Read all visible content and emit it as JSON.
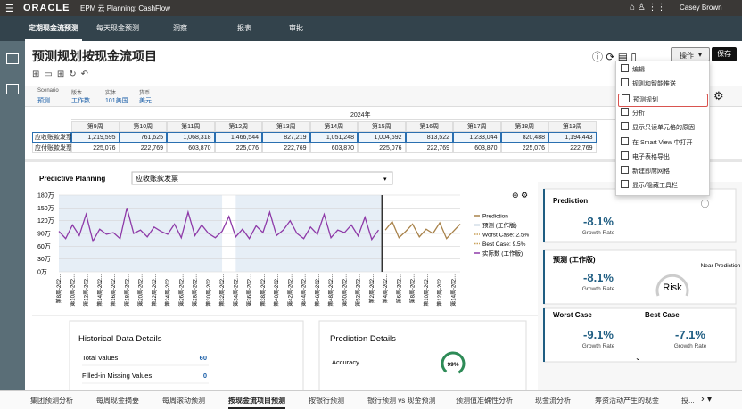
{
  "header": {
    "logo": "ORACLE",
    "app": "EPM 云 Planning: CashFlow",
    "user": "Casey Brown"
  },
  "nav": [
    "定期现金流预测",
    "每天现金预测",
    "洞察",
    "报表",
    "审批"
  ],
  "title": "预测规划按现金流项目",
  "actions": {
    "menu": "操作",
    "save": "保存"
  },
  "menu": [
    "编辑",
    "规则和智能推送",
    "预测规划",
    "分析",
    "显示只读单元格的原因",
    "在 Smart View 中打开",
    "电子表格导出",
    "新建即席网格",
    "显示/隐藏工具栏"
  ],
  "pov": [
    {
      "label": "Scenario",
      "value": "预测"
    },
    {
      "label": "版本",
      "value": "工作数"
    },
    {
      "label": "实体",
      "value": "101美国"
    },
    {
      "label": "货币",
      "value": "美元"
    }
  ],
  "grid": {
    "year": "2024年",
    "columns": [
      "第9周",
      "第10周",
      "第11周",
      "第12周",
      "第13周",
      "第14周",
      "第15周",
      "第16周",
      "第17周",
      "第18周",
      "第19周"
    ],
    "rows": [
      {
        "label": "应收账款发票",
        "cells": [
          "1,219,595",
          "761,625",
          "1,068,318",
          "1,466,544",
          "827,219",
          "1,051,248",
          "1,004,692",
          "813,522",
          "1,233,044",
          "820,488",
          "1,194,443"
        ]
      },
      {
        "label": "应付账款发票",
        "cells": [
          "225,076",
          "222,769",
          "603,870",
          "225,076",
          "222,769",
          "603,870",
          "225,076",
          "222,769",
          "603,870",
          "225,076",
          "222,769"
        ]
      }
    ]
  },
  "panel": {
    "title": "Predictive Planning",
    "member": "应收账款发票"
  },
  "chart_data": {
    "type": "line",
    "categories": [
      "第8周-202...",
      null,
      "第10周-202...",
      null,
      "第12周-202...",
      null,
      "第14周-202...",
      null,
      "第16周-202...",
      null,
      "第18周-202...",
      null,
      "第20周-202...",
      null,
      "第22周-202...",
      null,
      "第24周-202...",
      null,
      "第26周-202...",
      null,
      "第28周-202...",
      null,
      "第30周-202...",
      null,
      "第32周-202...",
      null,
      "第34周-202...",
      null,
      "第36周-202...",
      null,
      "第38周-202...",
      null,
      "第40周-202...",
      null,
      "第42周-202...",
      null,
      "第44周-202...",
      null,
      "第46周-202...",
      null,
      "第48周-202...",
      null,
      "第50周-202...",
      null,
      "第52周-202...",
      null,
      "第2周-202...",
      null,
      "第4周-202...",
      null,
      "第6周-202...",
      null,
      "第8周-202...",
      null,
      "第10周-202...",
      null,
      "第12周-202...",
      null,
      "第14周-202...",
      null
    ],
    "ylim": [
      0,
      180
    ],
    "yticks": [
      {
        "value": 0,
        "label": "0万"
      },
      {
        "value": 30,
        "label": "30万"
      },
      {
        "value": 60,
        "label": "60万"
      },
      {
        "value": 90,
        "label": "90万"
      },
      {
        "value": 120,
        "label": "120万"
      },
      {
        "value": 150,
        "label": "150万"
      },
      {
        "value": 180,
        "label": "180万"
      }
    ],
    "grid": true,
    "series": [
      {
        "name": "Prediction",
        "color": "#a8824a",
        "values": [
          null,
          null,
          null,
          null,
          null,
          null,
          null,
          null,
          null,
          null,
          null,
          null,
          null,
          null,
          null,
          null,
          null,
          null,
          null,
          null,
          null,
          null,
          null,
          null,
          null,
          null,
          null,
          null,
          null,
          null,
          null,
          null,
          null,
          null,
          null,
          null,
          null,
          null,
          null,
          null,
          null,
          null,
          null,
          null,
          null,
          null,
          null,
          null,
          98,
          118,
          80,
          95,
          112,
          82,
          100,
          90,
          115,
          78,
          95,
          112
        ]
      },
      {
        "name": "预测 (工作版)",
        "color": "#7f9fb8"
      },
      {
        "name": "Worst Case: 2.5%",
        "color": "#c9a15a"
      },
      {
        "name": "Best Case: 9.5%",
        "color": "#c9a15a"
      },
      {
        "name": "实际数 (工作版)",
        "color": "#8e3aa8",
        "values": [
          95,
          78,
          110,
          85,
          135,
          72,
          100,
          88,
          92,
          78,
          150,
          90,
          98,
          82,
          105,
          95,
          88,
          112,
          80,
          140,
          85,
          110,
          90,
          80,
          95,
          130,
          82,
          100,
          78,
          108,
          92,
          140,
          85,
          98,
          120,
          90,
          78,
          105,
          88,
          135,
          80,
          98,
          92,
          110,
          84,
          128,
          76,
          98,
          null,
          null,
          null,
          null,
          null,
          null,
          null,
          null,
          null,
          null,
          null,
          null
        ]
      }
    ]
  },
  "cards": [
    {
      "title": "Prediction",
      "value": "-8.1%",
      "caption": "Growth Rate"
    },
    {
      "title": "预测 (工作版)",
      "value": "-8.1%",
      "caption": "Growth Rate",
      "badge": "Risk",
      "note": "Near Prediction"
    },
    {
      "title": "Worst Case",
      "value": "-9.1%",
      "caption": "Growth Rate"
    },
    {
      "title": "Best Case",
      "value": "-7.1%",
      "caption": "Growth Rate"
    }
  ],
  "historical": {
    "title": "Historical Data Details",
    "rows": [
      {
        "label": "Total Values",
        "value": "60"
      },
      {
        "label": "Filled-in Missing Values",
        "value": "0"
      }
    ]
  },
  "prediction_details": {
    "title": "Prediction Details",
    "label": "Accuracy",
    "value": "99%"
  },
  "tabs": [
    "集团预测分析",
    "每周现金摘要",
    "每周滚动预测",
    "按现金流项目预测",
    "按银行预测",
    "银行预测 vs 现金预测",
    "预测值准确性分析",
    "现金流分析",
    "筹资活动产生的现金",
    "投..."
  ]
}
